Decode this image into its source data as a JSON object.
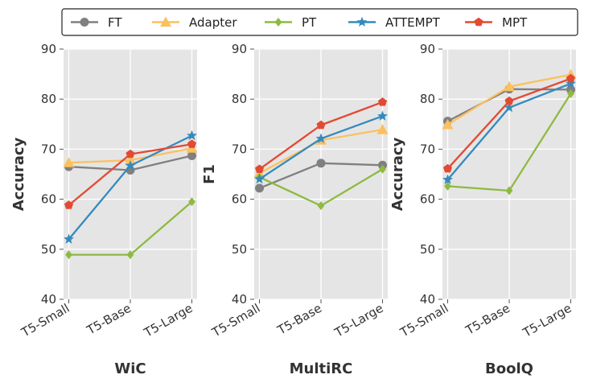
{
  "legend": [
    {
      "name": "FT",
      "color": "#808080",
      "marker": "circle"
    },
    {
      "name": "Adapter",
      "color": "#fbc15e",
      "marker": "triangle"
    },
    {
      "name": "PT",
      "color": "#8eba42",
      "marker": "diamond"
    },
    {
      "name": "ATTEMPT",
      "color": "#348abd",
      "marker": "star"
    },
    {
      "name": "MPT",
      "color": "#e24a33",
      "marker": "pentagon"
    }
  ],
  "chart_data": [
    {
      "type": "line",
      "title": "WiC",
      "xlabel": "WiC",
      "ylabel": "Accuracy",
      "categories": [
        "T5-Small",
        "T5-Base",
        "T5-Large"
      ],
      "ylim": [
        40,
        90
      ],
      "yticks": [
        "40",
        "50",
        "60",
        "70",
        "80",
        "90"
      ],
      "grid": true,
      "series": [
        {
          "name": "FT",
          "values": [
            66.5,
            65.8,
            68.7
          ]
        },
        {
          "name": "Adapter",
          "values": [
            67.3,
            67.8,
            70.2
          ]
        },
        {
          "name": "PT",
          "values": [
            48.9,
            48.9,
            59.5
          ]
        },
        {
          "name": "ATTEMPT",
          "values": [
            52.0,
            66.7,
            72.7
          ]
        },
        {
          "name": "MPT",
          "values": [
            58.8,
            69.0,
            71.0
          ]
        }
      ]
    },
    {
      "type": "line",
      "title": "MultiRC",
      "xlabel": "MultiRC",
      "ylabel": "F1",
      "categories": [
        "T5-Small",
        "T5-Base",
        "T5-Large"
      ],
      "ylim": [
        40,
        90
      ],
      "yticks": [
        "40",
        "50",
        "60",
        "70",
        "80",
        "90"
      ],
      "grid": true,
      "series": [
        {
          "name": "FT",
          "values": [
            62.2,
            67.2,
            66.8
          ]
        },
        {
          "name": "Adapter",
          "values": [
            65.2,
            71.8,
            73.9
          ]
        },
        {
          "name": "PT",
          "values": [
            64.4,
            58.7,
            66.0
          ]
        },
        {
          "name": "ATTEMPT",
          "values": [
            64.0,
            72.1,
            76.6
          ]
        },
        {
          "name": "MPT",
          "values": [
            66.0,
            74.8,
            79.4
          ]
        }
      ]
    },
    {
      "type": "line",
      "title": "BoolQ",
      "xlabel": "BoolQ",
      "ylabel": "Accuracy",
      "categories": [
        "T5-Small",
        "T5-Base",
        "T5-Large"
      ],
      "ylim": [
        40,
        90
      ],
      "yticks": [
        "40",
        "50",
        "60",
        "70",
        "80",
        "90"
      ],
      "grid": true,
      "series": [
        {
          "name": "FT",
          "values": [
            75.6,
            82.0,
            81.9
          ]
        },
        {
          "name": "Adapter",
          "values": [
            74.9,
            82.5,
            84.9
          ]
        },
        {
          "name": "PT",
          "values": [
            62.6,
            61.7,
            81.1
          ]
        },
        {
          "name": "ATTEMPT",
          "values": [
            63.9,
            78.3,
            83.1
          ]
        },
        {
          "name": "MPT",
          "values": [
            66.1,
            79.6,
            84.1
          ]
        }
      ]
    }
  ]
}
